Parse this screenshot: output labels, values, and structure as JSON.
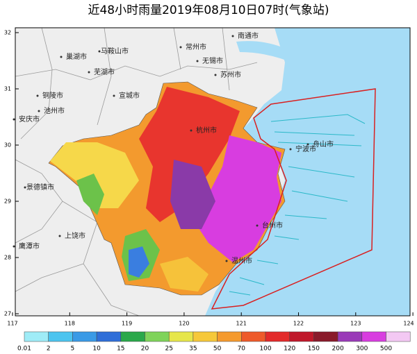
{
  "title": "近48小时雨量2019年08月10日07时(气象站)",
  "lat_labels": [
    "32",
    "31",
    "30",
    "29",
    "28",
    "27"
  ],
  "lon_labels": [
    "117",
    "118",
    "119",
    "120",
    "121",
    "122",
    "123",
    "124"
  ],
  "places": [
    "南通市",
    "马鞍山市",
    "常州市",
    "巢湖市",
    "无锡市",
    "芜湖市",
    "苏州市",
    "铜陵市",
    "宣城市",
    "池州市",
    "安庆市",
    "景德镇市",
    "上饶市",
    "鹰潭市",
    "杭州市",
    "宁波市",
    "舟山市",
    "台州市",
    "温州市"
  ],
  "legend": [
    "0.01",
    "2",
    "5",
    "10",
    "15",
    "20",
    "25",
    "35",
    "50",
    "70",
    "100",
    "120",
    "150",
    "200",
    "300",
    "500"
  ]
}
